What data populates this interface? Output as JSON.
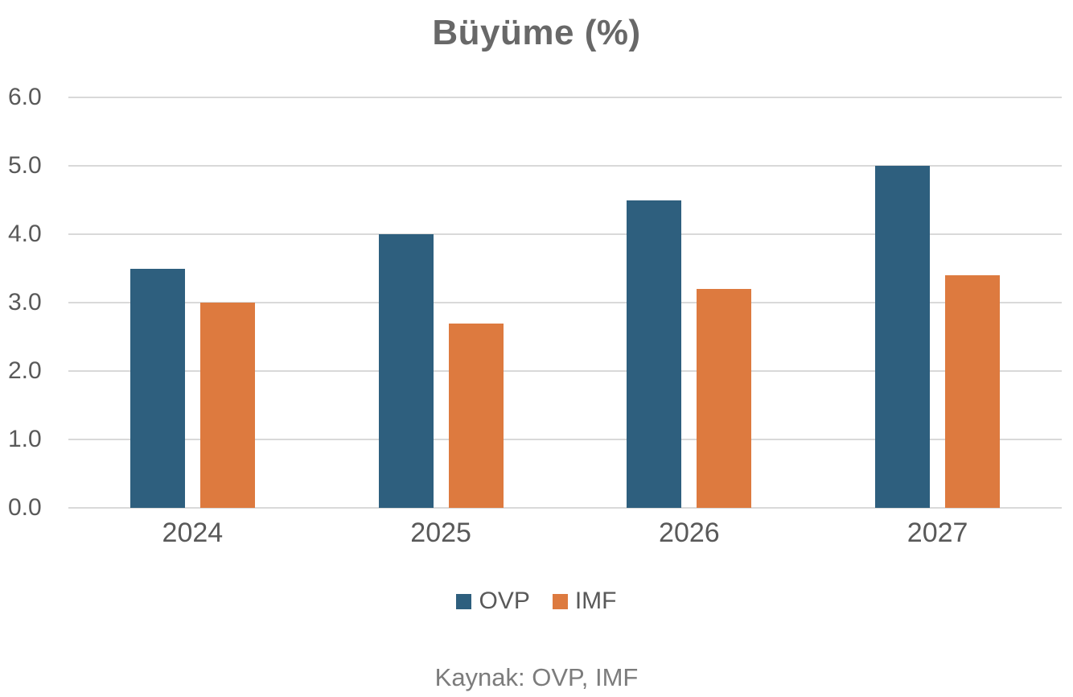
{
  "title": "Büyüme (%)",
  "source_note": "Kaynak: OVP, IMF",
  "chart_data": {
    "type": "bar",
    "title": "Büyüme (%)",
    "categories": [
      "2024",
      "2025",
      "2026",
      "2027"
    ],
    "series": [
      {
        "name": "OVP",
        "color": "#2e5f7e",
        "values": [
          3.5,
          4.0,
          4.5,
          5.0
        ]
      },
      {
        "name": "IMF",
        "color": "#dd7a3f",
        "values": [
          3.0,
          2.7,
          3.2,
          3.4
        ]
      }
    ],
    "ylim": [
      0,
      6
    ],
    "yticks": [
      "0.0",
      "1.0",
      "2.0",
      "3.0",
      "4.0",
      "5.0",
      "6.0"
    ],
    "xlabel": "",
    "ylabel": "",
    "grid": true,
    "grid_color": "#d9d9d9",
    "axis_text_color": "#595959",
    "legend_position": "bottom"
  }
}
